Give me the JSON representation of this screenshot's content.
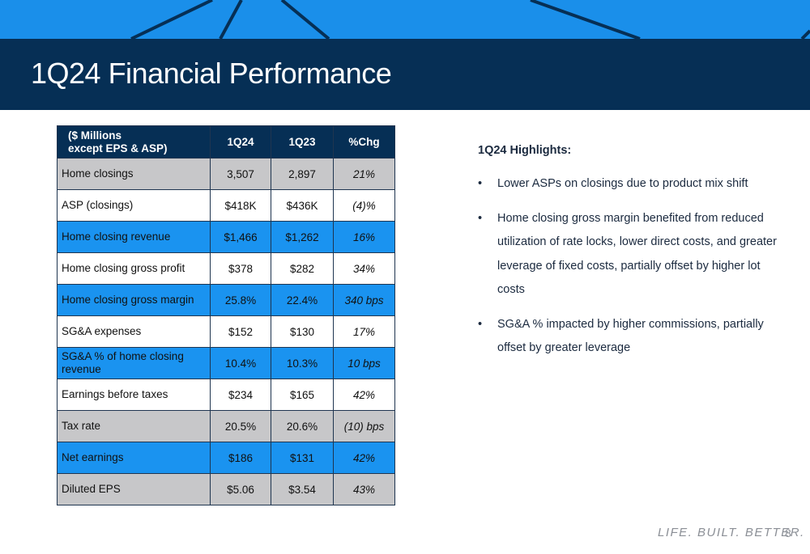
{
  "header": {
    "title": "1Q24 Financial Performance"
  },
  "table": {
    "header_label_line1": "($ Millions",
    "header_label_line2": "except EPS & ASP)",
    "columns": [
      "1Q24",
      "1Q23",
      "%Chg"
    ],
    "rows": [
      {
        "label": "Home closings",
        "q124": "3,507",
        "q123": "2,897",
        "chg": "21%"
      },
      {
        "label": "ASP (closings)",
        "q124": "$418K",
        "q123": "$436K",
        "chg": "(4)%"
      },
      {
        "label": "Home closing revenue",
        "q124": "$1,466",
        "q123": "$1,262",
        "chg": "16%"
      },
      {
        "label": "Home closing gross profit",
        "q124": "$378",
        "q123": "$282",
        "chg": "34%"
      },
      {
        "label": "Home closing gross margin",
        "q124": "25.8%",
        "q123": "22.4%",
        "chg": "340 bps"
      },
      {
        "label": "SG&A expenses",
        "q124": "$152",
        "q123": "$130",
        "chg": "17%"
      },
      {
        "label": "SG&A % of home closing revenue",
        "q124": "10.4%",
        "q123": "10.3%",
        "chg": "10 bps"
      },
      {
        "label": "Earnings before taxes",
        "q124": "$234",
        "q123": "$165",
        "chg": "42%"
      },
      {
        "label": "Tax rate",
        "q124": "20.5%",
        "q123": "20.6%",
        "chg": "(10) bps"
      },
      {
        "label": "Net earnings",
        "q124": "$186",
        "q123": "$131",
        "chg": "42%"
      },
      {
        "label": "Diluted EPS",
        "q124": "$5.06",
        "q123": "$3.54",
        "chg": "43%"
      }
    ]
  },
  "highlights": {
    "title": "1Q24 Highlights:",
    "bullet": "•",
    "items": [
      "Lower ASPs on closings due to product mix shift",
      "Home closing gross margin benefited from reduced utilization of rate locks, lower direct costs, and greater leverage of fixed costs, partially offset by higher lot costs",
      "SG&A % impacted by higher commissions, partially offset by greater leverage"
    ]
  },
  "footer": {
    "tagline": "LIFE. BUILT. BETTER.",
    "page_number": "8"
  },
  "colors": {
    "navy": "#062f55",
    "bright_blue": "#1a8fea",
    "row_blue": "#1a93f0",
    "row_gray": "#c7c7c9"
  }
}
